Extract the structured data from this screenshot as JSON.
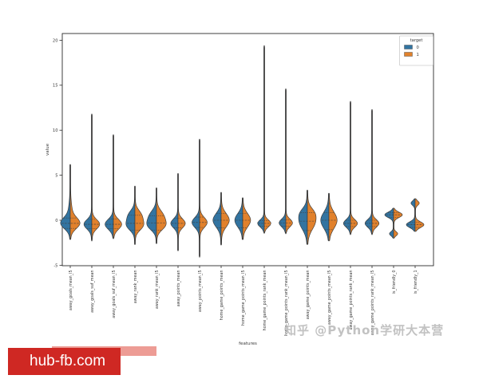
{
  "watermarks": {
    "red_box_text": "hub-fb.com",
    "red_box_color": "#cf2823",
    "zhihu_text": "知乎 @Python学研大本营"
  },
  "chart_data": {
    "type": "violin",
    "split": true,
    "hue": "target",
    "title": "",
    "xlabel": "features",
    "ylabel": "value",
    "ylim": [
      -5.2,
      20.8
    ],
    "yticks": [
      20,
      15,
      10,
      5,
      0,
      -5
    ],
    "grid": false,
    "legend": {
      "title": "target",
      "position": "upper right",
      "entries": [
        {
          "label": "0",
          "color": "#3274a1"
        },
        {
          "label": "1",
          "color": "#e1812c"
        }
      ]
    },
    "series": [
      {
        "name": "0",
        "side": "left",
        "color": "#3274a1"
      },
      {
        "name": "1",
        "side": "right",
        "color": "#e1812c"
      }
    ],
    "violins": [
      {
        "label": "away_goals_mean_l5",
        "tail_top": 6.2,
        "tail_bottom": -2.15,
        "lobes": [
          {
            "c": -0.35,
            "s": 0.6,
            "a": 0.95
          },
          {
            "c": 0.7,
            "s": 1.0,
            "a": 0.18
          }
        ],
        "quartiles": [
          -0.9,
          -0.35,
          0.25
        ]
      },
      {
        "label": "away_goals_suf_mean",
        "tail_top": 11.8,
        "tail_bottom": -2.3,
        "lobes": [
          {
            "c": -0.45,
            "s": 0.52,
            "a": 0.85
          }
        ],
        "quartiles": [
          -0.95,
          -0.45,
          0.1
        ]
      },
      {
        "label": "away_goals_suf_mean_l5",
        "tail_top": 9.5,
        "tail_bottom": -2.05,
        "lobes": [
          {
            "c": -0.45,
            "s": 0.55,
            "a": 0.9
          }
        ],
        "quartiles": [
          -0.95,
          -0.45,
          0.15
        ]
      },
      {
        "label": "away_rank_mean",
        "tail_top": 3.8,
        "tail_bottom": -2.7,
        "lobes": [
          {
            "c": -0.6,
            "s": 0.55,
            "a": 0.8
          },
          {
            "c": 0.5,
            "s": 0.6,
            "a": 0.68
          }
        ],
        "quartiles": [
          -1.1,
          -0.35,
          0.55
        ]
      },
      {
        "label": "away_rank_mean_l5",
        "tail_top": 3.6,
        "tail_bottom": -2.6,
        "lobes": [
          {
            "c": -0.6,
            "s": 0.55,
            "a": 0.8
          },
          {
            "c": 0.45,
            "s": 0.65,
            "a": 0.72
          }
        ],
        "quartiles": [
          -1.1,
          -0.3,
          0.5
        ]
      },
      {
        "label": "away_points_mean",
        "tail_top": 5.2,
        "tail_bottom": -3.4,
        "lobes": [
          {
            "c": -0.35,
            "s": 0.5,
            "a": 0.78
          }
        ],
        "quartiles": [
          -0.85,
          -0.35,
          0.2
        ]
      },
      {
        "label": "away_points_mean_l5",
        "tail_top": 9.0,
        "tail_bottom": -4.1,
        "lobes": [
          {
            "c": -0.25,
            "s": 0.55,
            "a": 0.82
          }
        ],
        "quartiles": [
          -0.8,
          -0.25,
          0.35
        ]
      },
      {
        "label": "home_game_points_mean",
        "tail_top": 3.1,
        "tail_bottom": -2.75,
        "lobes": [
          {
            "c": 0.0,
            "s": 0.75,
            "a": 0.88
          }
        ],
        "quartiles": [
          -0.85,
          0.0,
          0.75
        ]
      },
      {
        "label": "home_game_points_mean_l5",
        "tail_top": 2.5,
        "tail_bottom": -2.15,
        "lobes": [
          {
            "c": 0.0,
            "s": 0.75,
            "a": 0.85
          }
        ],
        "quartiles": [
          -0.85,
          0.0,
          0.75
        ]
      },
      {
        "label": "home_game_points_rank_mean",
        "tail_top": 19.4,
        "tail_bottom": -1.45,
        "lobes": [
          {
            "c": -0.35,
            "s": 0.38,
            "a": 0.72
          }
        ],
        "quartiles": [
          -0.65,
          -0.35,
          -0.05
        ]
      },
      {
        "label": "home_game_points_rank_mean_l5",
        "tail_top": 14.6,
        "tail_bottom": -1.5,
        "lobes": [
          {
            "c": -0.3,
            "s": 0.42,
            "a": 0.72
          }
        ],
        "quartiles": [
          -0.65,
          -0.3,
          0.05
        ]
      },
      {
        "label": "away_game_points_mean",
        "tail_top": 3.35,
        "tail_bottom": -2.7,
        "lobes": [
          {
            "c": -0.05,
            "s": 0.95,
            "a": 0.88
          },
          {
            "c": 0.9,
            "s": 0.5,
            "a": 0.25
          }
        ],
        "quartiles": [
          -1.15,
          -0.1,
          0.85
        ]
      },
      {
        "label": "away_game_points_mean_l5",
        "tail_top": 3.0,
        "tail_bottom": -2.3,
        "lobes": [
          {
            "c": 0.0,
            "s": 0.9,
            "a": 0.88
          }
        ],
        "quartiles": [
          -1.05,
          0.0,
          0.85
        ]
      },
      {
        "label": "away_game_points_rank_mean",
        "tail_top": 13.2,
        "tail_bottom": -1.6,
        "lobes": [
          {
            "c": -0.35,
            "s": 0.42,
            "a": 0.75
          }
        ],
        "quartiles": [
          -0.7,
          -0.35,
          0.0
        ]
      },
      {
        "label": "away_game_points_rank_mean_l5",
        "tail_top": 12.3,
        "tail_bottom": -1.6,
        "lobes": [
          {
            "c": -0.35,
            "s": 0.42,
            "a": 0.75
          }
        ],
        "quartiles": [
          -0.7,
          -0.35,
          0.0
        ]
      },
      {
        "label": "is_friendly_0",
        "tail_top": 1.35,
        "tail_bottom": -2.0,
        "lobes": [
          {
            "c": 0.6,
            "s": 0.3,
            "a": 0.95
          },
          {
            "c": -1.5,
            "s": 0.22,
            "a": 0.42
          }
        ],
        "quartiles": [
          0.3,
          0.6,
          0.85
        ]
      },
      {
        "label": "is_friendly_1",
        "tail_top": 2.4,
        "tail_bottom": -1.25,
        "lobes": [
          {
            "c": 1.9,
            "s": 0.24,
            "a": 0.42
          },
          {
            "c": -0.5,
            "s": 0.32,
            "a": 0.95
          }
        ],
        "quartiles": [
          -0.8,
          -0.5,
          -0.2
        ]
      }
    ]
  }
}
